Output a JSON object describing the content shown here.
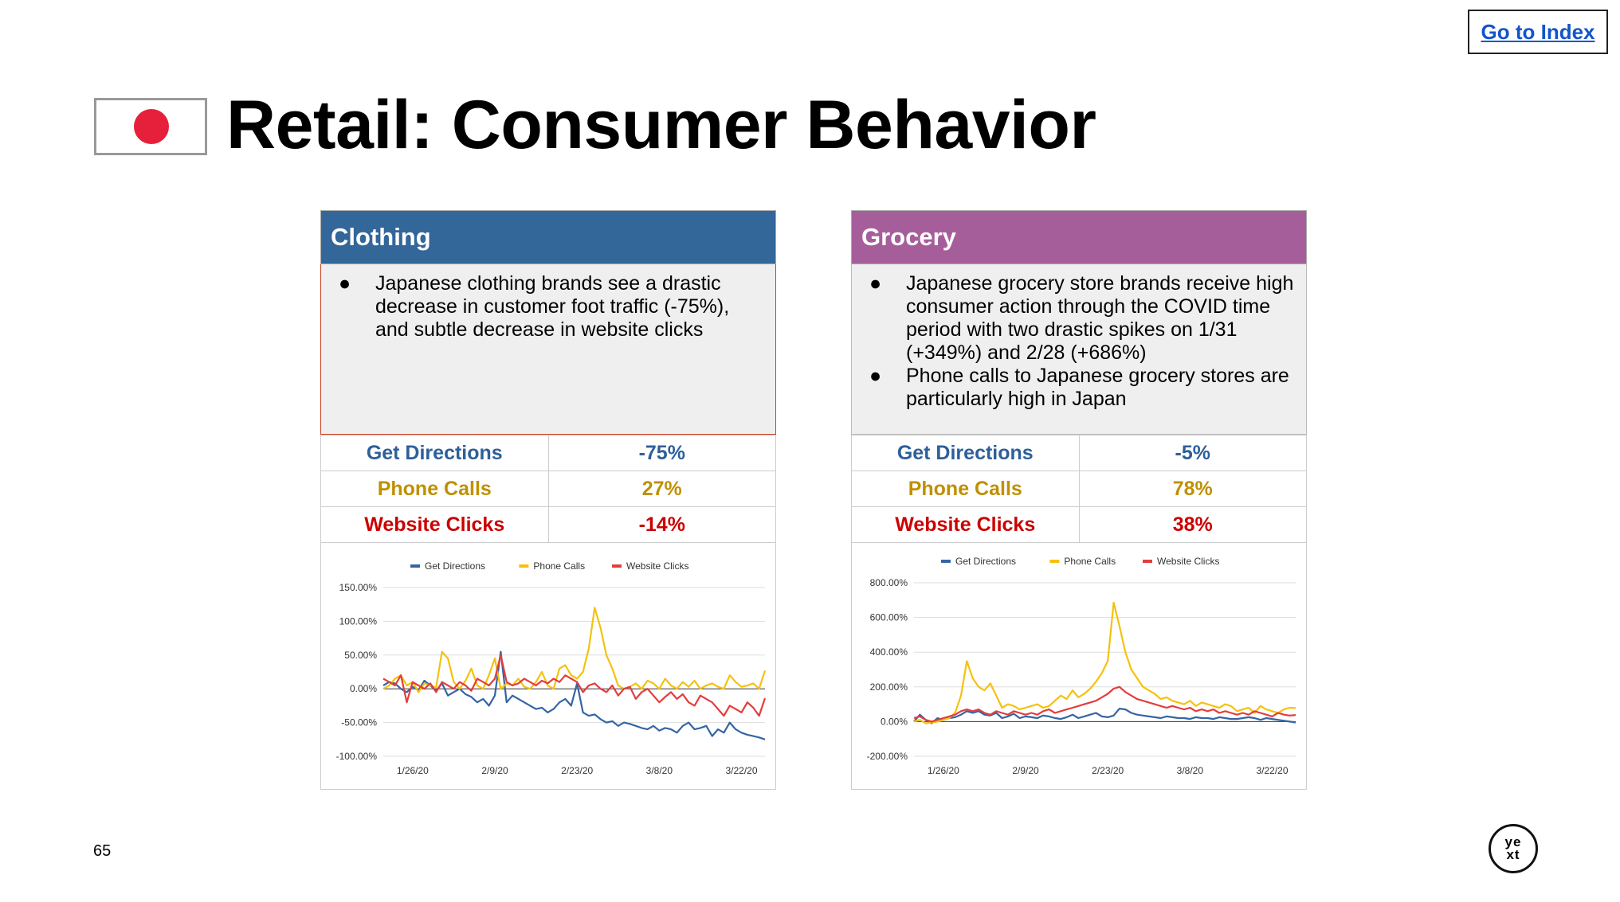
{
  "nav": {
    "index_link": "Go to Index"
  },
  "title": "Retail: Consumer Behavior",
  "page_number": "65",
  "logo": {
    "line1": "ye",
    "line2": "xt"
  },
  "colors": {
    "directions": "#3465a4",
    "phone": "#f4c20d",
    "web": "#e33d3d",
    "clothing_header": "#336699",
    "grocery_header": "#a65e9b"
  },
  "panels": [
    {
      "header": "Clothing",
      "bullets": [
        "Japanese clothing brands see a drastic decrease in customer foot traffic (-75%), and subtle decrease in website clicks"
      ],
      "metrics": [
        {
          "label": "Get Directions",
          "value": "-75%"
        },
        {
          "label": "Phone Calls",
          "value": "27%"
        },
        {
          "label": "Website Clicks",
          "value": "-14%"
        }
      ]
    },
    {
      "header": "Grocery",
      "bullets": [
        "Japanese grocery store brands receive high consumer action through the COVID time period with two drastic spikes on 1/31 (+349%) and 2/28 (+686%)",
        "Phone calls to Japanese grocery stores are particularly high in Japan"
      ],
      "metrics": [
        {
          "label": "Get Directions",
          "value": "-5%"
        },
        {
          "label": "Phone Calls",
          "value": "78%"
        },
        {
          "label": "Website Clicks",
          "value": "38%"
        }
      ]
    }
  ],
  "chart_data": [
    {
      "type": "line",
      "title": "",
      "legend": [
        "Get Directions",
        "Phone Calls",
        "Website Clicks"
      ],
      "x_ticks": [
        "1/26/20",
        "2/9/20",
        "2/23/20",
        "3/8/20",
        "3/22/20"
      ],
      "x_tick_index": [
        5,
        19,
        33,
        47,
        61
      ],
      "y_ticks": [
        "150.00%",
        "100.00%",
        "50.00%",
        "0.00%",
        "-50.00%",
        "-100.00%"
      ],
      "ylim": [
        -100,
        150
      ],
      "series": [
        {
          "name": "Get Directions",
          "values": [
            5,
            10,
            8,
            0,
            -5,
            3,
            -2,
            12,
            5,
            -3,
            8,
            -10,
            -5,
            0,
            -8,
            -12,
            -20,
            -15,
            -25,
            -10,
            55,
            -20,
            -10,
            -15,
            -20,
            -25,
            -30,
            -28,
            -35,
            -30,
            -20,
            -15,
            -25,
            8,
            -35,
            -40,
            -38,
            -45,
            -50,
            -48,
            -55,
            -50,
            -52,
            -55,
            -58,
            -60,
            -55,
            -62,
            -58,
            -60,
            -65,
            -55,
            -50,
            -60,
            -58,
            -55,
            -70,
            -60,
            -65,
            -50,
            -60,
            -65,
            -68,
            -70,
            -72,
            -75
          ]
        },
        {
          "name": "Phone Calls",
          "values": [
            0,
            5,
            15,
            20,
            5,
            10,
            -5,
            8,
            5,
            2,
            55,
            45,
            10,
            0,
            12,
            30,
            5,
            0,
            20,
            45,
            0,
            8,
            5,
            15,
            3,
            0,
            10,
            25,
            5,
            0,
            30,
            35,
            20,
            15,
            25,
            60,
            120,
            90,
            50,
            30,
            5,
            0,
            3,
            8,
            0,
            12,
            8,
            0,
            15,
            5,
            0,
            10,
            3,
            12,
            0,
            5,
            8,
            3,
            0,
            20,
            10,
            3,
            5,
            8,
            0,
            27
          ]
        },
        {
          "name": "Website Clicks",
          "values": [
            15,
            10,
            5,
            20,
            -20,
            10,
            5,
            0,
            8,
            -5,
            10,
            5,
            0,
            10,
            5,
            -3,
            15,
            10,
            5,
            15,
            50,
            10,
            5,
            8,
            15,
            10,
            5,
            12,
            8,
            15,
            10,
            20,
            15,
            10,
            -5,
            5,
            8,
            0,
            -5,
            5,
            -10,
            0,
            3,
            -15,
            -5,
            0,
            -10,
            -20,
            -12,
            -5,
            -15,
            -8,
            -20,
            -25,
            -10,
            -15,
            -20,
            -30,
            -40,
            -25,
            -30,
            -35,
            -20,
            -28,
            -40,
            -14
          ]
        }
      ]
    },
    {
      "type": "line",
      "title": "",
      "legend": [
        "Get Directions",
        "Phone Calls",
        "Website Clicks"
      ],
      "x_ticks": [
        "1/26/20",
        "2/9/20",
        "2/23/20",
        "3/8/20",
        "3/22/20"
      ],
      "x_tick_index": [
        5,
        19,
        33,
        47,
        61
      ],
      "y_ticks": [
        "800.00%",
        "600.00%",
        "400.00%",
        "200.00%",
        "0.00%",
        "-200.00%"
      ],
      "ylim": [
        -200,
        800
      ],
      "series": [
        {
          "name": "Get Directions",
          "values": [
            0,
            40,
            10,
            -10,
            20,
            10,
            20,
            25,
            40,
            60,
            50,
            60,
            40,
            35,
            50,
            20,
            30,
            45,
            20,
            30,
            25,
            20,
            35,
            30,
            20,
            15,
            25,
            40,
            20,
            30,
            40,
            50,
            30,
            25,
            35,
            75,
            70,
            50,
            40,
            35,
            30,
            25,
            20,
            30,
            25,
            20,
            20,
            15,
            25,
            20,
            20,
            15,
            25,
            20,
            15,
            15,
            20,
            25,
            20,
            10,
            20,
            15,
            10,
            5,
            0,
            -5
          ]
        },
        {
          "name": "Phone Calls",
          "values": [
            0,
            10,
            -10,
            -5,
            0,
            10,
            20,
            50,
            150,
            349,
            250,
            200,
            180,
            220,
            150,
            80,
            100,
            90,
            70,
            80,
            90,
            100,
            80,
            90,
            120,
            150,
            130,
            180,
            140,
            160,
            190,
            230,
            280,
            350,
            686,
            550,
            400,
            300,
            250,
            200,
            180,
            160,
            130,
            140,
            120,
            110,
            100,
            120,
            90,
            110,
            100,
            90,
            80,
            100,
            90,
            60,
            70,
            80,
            50,
            90,
            70,
            60,
            50,
            70,
            80,
            78
          ]
        },
        {
          "name": "Website Clicks",
          "values": [
            20,
            30,
            10,
            0,
            10,
            20,
            30,
            40,
            60,
            70,
            60,
            70,
            50,
            40,
            60,
            50,
            40,
            60,
            50,
            40,
            50,
            40,
            60,
            70,
            50,
            60,
            70,
            80,
            90,
            100,
            110,
            120,
            140,
            160,
            190,
            200,
            170,
            150,
            130,
            120,
            110,
            100,
            90,
            80,
            90,
            80,
            70,
            80,
            60,
            70,
            60,
            70,
            50,
            60,
            50,
            40,
            50,
            40,
            60,
            50,
            40,
            30,
            50,
            40,
            35,
            38
          ]
        }
      ]
    }
  ]
}
